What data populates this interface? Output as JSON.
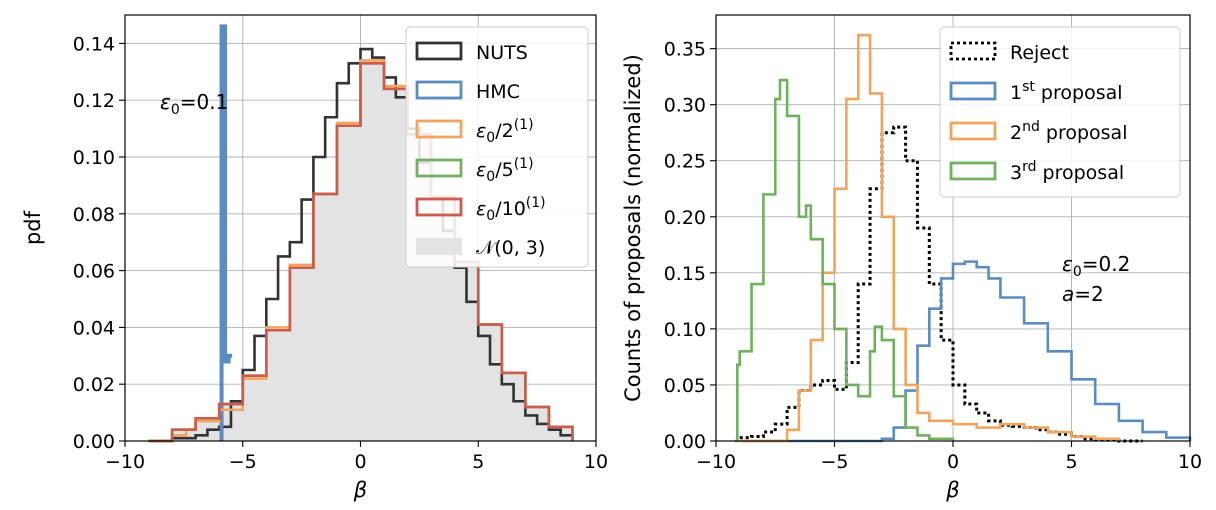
{
  "chart_data": [
    {
      "type": "line",
      "subtype": "step-histogram",
      "xlabel": "β",
      "ylabel": "pdf",
      "xlim": [
        -10,
        10
      ],
      "ylim": [
        0,
        0.15
      ],
      "xticks": [
        "−10",
        "−5",
        "0",
        "5",
        "10"
      ],
      "xtick_values": [
        -10,
        -5,
        0,
        5,
        10
      ],
      "yticks": [
        "0.00",
        "0.02",
        "0.04",
        "0.06",
        "0.08",
        "0.10",
        "0.12",
        "0.14"
      ],
      "ytick_values": [
        0,
        0.02,
        0.04,
        0.06,
        0.08,
        0.1,
        0.12,
        0.14
      ],
      "grid": true,
      "legend_position": "top-right",
      "annotations": [
        {
          "text_main": "ε",
          "text_sub": "0",
          "text_rest": "=0.1"
        }
      ],
      "series": [
        {
          "key": "nuts",
          "name_main": "NUTS",
          "color": "#333333",
          "style": "solid",
          "x": [
            -9,
            -8,
            -7,
            -6.5,
            -6,
            -5.5,
            -5,
            -4.5,
            -4,
            -3.5,
            -3,
            -2.5,
            -2,
            -1.5,
            -1,
            -0.5,
            0,
            0.5,
            1,
            1.5,
            2,
            2.5,
            3,
            3.5,
            4,
            4.5,
            5,
            5.5,
            6,
            6.5,
            7,
            7.5,
            8,
            8.5,
            9
          ],
          "y": [
            0.0,
            0.001,
            0.002,
            0.004,
            0.005,
            0.014,
            0.025,
            0.037,
            0.05,
            0.065,
            0.07,
            0.085,
            0.1,
            0.114,
            0.126,
            0.133,
            0.138,
            0.135,
            0.128,
            0.121,
            0.11,
            0.098,
            0.086,
            0.074,
            0.061,
            0.049,
            0.037,
            0.027,
            0.02,
            0.014,
            0.009,
            0.006,
            0.004,
            0.002,
            0.0
          ]
        },
        {
          "key": "hmc",
          "name_main": "HMC",
          "color": "#5b8cc0",
          "style": "solid",
          "x": [
            -5.9,
            -5.9,
            -5.75,
            -5.75,
            -5.6,
            -5.6,
            -5.45
          ],
          "y": [
            0.0,
            0.146,
            0.146,
            0.028,
            0.028,
            0.03,
            0.03
          ]
        },
        {
          "key": "half",
          "name_main": "ε",
          "name_sub": "0",
          "name_rest": "/2",
          "name_sup": "(1)",
          "color": "#f0a55e",
          "style": "solid",
          "x": [
            -9,
            -8,
            -7.4,
            -7,
            -6,
            -5,
            -4,
            -3,
            -2,
            -1,
            0,
            1,
            2,
            3,
            4,
            5,
            6,
            7,
            8,
            9
          ],
          "y": [
            0.0,
            0.002,
            0.004,
            0.007,
            0.011,
            0.022,
            0.04,
            0.062,
            0.087,
            0.112,
            0.134,
            0.125,
            0.108,
            0.086,
            0.063,
            0.041,
            0.024,
            0.012,
            0.005,
            0.0
          ]
        },
        {
          "key": "fifth",
          "name_main": "ε",
          "name_sub": "0",
          "name_rest": "/5",
          "name_sup": "(1)",
          "color": "#70b05f",
          "style": "solid",
          "x": [
            -9,
            -8,
            -7,
            -6,
            -5,
            -4,
            -3,
            -2,
            -1,
            0,
            1,
            2,
            3,
            4,
            5,
            6,
            7,
            8,
            9
          ],
          "y": [
            0.0,
            0.004,
            0.008,
            0.013,
            0.023,
            0.039,
            0.061,
            0.087,
            0.111,
            0.133,
            0.124,
            0.108,
            0.086,
            0.063,
            0.041,
            0.024,
            0.012,
            0.005,
            0.0
          ]
        },
        {
          "key": "tenth",
          "name_main": "ε",
          "name_sub": "0",
          "name_rest": "/10",
          "name_sup": "(1)",
          "color": "#cc5a4d",
          "style": "solid",
          "x": [
            -9,
            -8,
            -7,
            -6,
            -5,
            -4,
            -3,
            -2,
            -1,
            0,
            1,
            2,
            3,
            4,
            5,
            6,
            7,
            8,
            9
          ],
          "y": [
            0.0,
            0.004,
            0.008,
            0.013,
            0.023,
            0.039,
            0.061,
            0.087,
            0.111,
            0.133,
            0.124,
            0.108,
            0.086,
            0.063,
            0.041,
            0.024,
            0.012,
            0.005,
            0.0
          ]
        },
        {
          "key": "normal",
          "name_main": "𝒩(0, 3)",
          "color": "#e3e3e3",
          "style": "fill",
          "x": [
            -9,
            -8,
            -7,
            -6,
            -5,
            -4,
            -3,
            -2,
            -1,
            0,
            1,
            2,
            3,
            4,
            5,
            6,
            7,
            8,
            9
          ],
          "y": [
            0.0,
            0.004,
            0.008,
            0.013,
            0.023,
            0.039,
            0.061,
            0.087,
            0.111,
            0.133,
            0.124,
            0.108,
            0.086,
            0.063,
            0.041,
            0.024,
            0.012,
            0.005,
            0.0
          ]
        }
      ]
    },
    {
      "type": "line",
      "subtype": "step-histogram",
      "xlabel": "β",
      "ylabel": "Counts of proposals (normalized)",
      "xlim": [
        -10,
        10
      ],
      "ylim": [
        0,
        0.38
      ],
      "xticks": [
        "−10",
        "−5",
        "0",
        "5",
        "10"
      ],
      "xtick_values": [
        -10,
        -5,
        0,
        5,
        10
      ],
      "yticks": [
        "0.00",
        "0.05",
        "0.10",
        "0.15",
        "0.20",
        "0.25",
        "0.30",
        "0.35"
      ],
      "ytick_values": [
        0,
        0.05,
        0.1,
        0.15,
        0.2,
        0.25,
        0.3,
        0.35
      ],
      "grid": true,
      "legend_position": "top-right",
      "annotations": [
        {
          "text_main": "ε",
          "text_sub": "0",
          "text_rest": "=0.2"
        },
        {
          "text_main": "a",
          "text_rest": "=2"
        }
      ],
      "series": [
        {
          "key": "reject",
          "name_main": "Reject",
          "color": "#000000",
          "style": "dotted",
          "x": [
            -9,
            -8.5,
            -8,
            -7.5,
            -7,
            -6.5,
            -6,
            -5.5,
            -5,
            -4.5,
            -4,
            -3.5,
            -3,
            -2.5,
            -2,
            -1.5,
            -1,
            -0.5,
            0,
            0.5,
            1,
            1.5,
            2,
            2.5,
            3,
            3.5,
            4,
            4.5,
            5,
            5.5,
            6,
            7,
            8
          ],
          "y": [
            0.003,
            0.004,
            0.008,
            0.015,
            0.03,
            0.045,
            0.05,
            0.054,
            0.046,
            0.07,
            0.14,
            0.225,
            0.275,
            0.28,
            0.25,
            0.19,
            0.14,
            0.09,
            0.05,
            0.033,
            0.025,
            0.018,
            0.014,
            0.013,
            0.012,
            0.01,
            0.008,
            0.006,
            0.004,
            0.002,
            0.001,
            0.0,
            0.0
          ]
        },
        {
          "key": "p1",
          "name_main": "1",
          "name_sup": "st",
          "name_rest": " proposal",
          "color": "#5b8cc0",
          "style": "solid",
          "x": [
            -9,
            -5,
            -4,
            -3,
            -2.5,
            -2,
            -1.5,
            -1,
            -0.5,
            0,
            0.5,
            1,
            1.5,
            2,
            3,
            4,
            5,
            6,
            7,
            8,
            9,
            10
          ],
          "y": [
            0.0,
            0.0,
            0.0,
            0.002,
            0.012,
            0.045,
            0.085,
            0.118,
            0.145,
            0.158,
            0.16,
            0.155,
            0.145,
            0.128,
            0.105,
            0.08,
            0.055,
            0.033,
            0.018,
            0.008,
            0.003,
            0.0
          ]
        },
        {
          "key": "p2",
          "name_main": "2",
          "name_sup": "nd",
          "name_rest": " proposal",
          "color": "#f0a55e",
          "style": "solid",
          "x": [
            -9,
            -7.5,
            -7,
            -6.5,
            -6,
            -5.5,
            -5,
            -4.5,
            -4,
            -3.5,
            -3,
            -2.5,
            -2,
            -1.5,
            -1,
            0,
            1,
            2,
            3,
            4,
            5,
            6,
            7
          ],
          "y": [
            0.0,
            0.0,
            0.01,
            0.045,
            0.09,
            0.15,
            0.225,
            0.305,
            0.362,
            0.31,
            0.2,
            0.1,
            0.05,
            0.025,
            0.018,
            0.015,
            0.012,
            0.015,
            0.012,
            0.008,
            0.004,
            0.002,
            0.0
          ]
        },
        {
          "key": "p3",
          "name_main": "3",
          "name_sup": "rd",
          "name_rest": " proposal",
          "color": "#70b05f",
          "style": "solid",
          "x": [
            -9.2,
            -9.1,
            -9,
            -8.5,
            -8,
            -7.5,
            -7.3,
            -7,
            -6.5,
            -6.2,
            -6,
            -5.5,
            -5,
            -4.5,
            -4,
            -3.5,
            -3.3,
            -3,
            -2.5,
            -2,
            -1.5,
            -1,
            0
          ],
          "y": [
            0.0,
            0.068,
            0.08,
            0.14,
            0.22,
            0.305,
            0.322,
            0.29,
            0.2,
            0.21,
            0.18,
            0.14,
            0.1,
            0.05,
            0.04,
            0.08,
            0.102,
            0.09,
            0.04,
            0.012,
            0.005,
            0.002,
            0.0
          ]
        }
      ]
    }
  ]
}
